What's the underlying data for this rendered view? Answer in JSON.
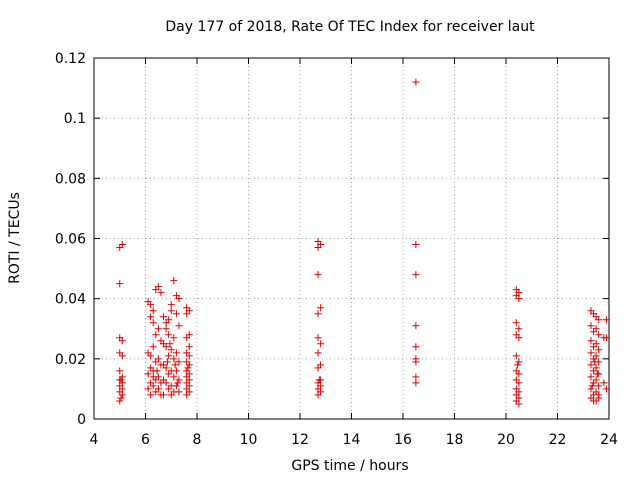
{
  "chart_data": {
    "type": "scatter",
    "title": "Day 177 of 2018, Rate Of TEC Index for receiver laut",
    "xlabel": "GPS time / hours",
    "ylabel": "ROTI / TECUs",
    "xlim": [
      4,
      24
    ],
    "ylim": [
      0,
      0.12
    ],
    "x_ticks": [
      4,
      6,
      8,
      10,
      12,
      14,
      16,
      18,
      20,
      22,
      24
    ],
    "x_tick_labels": [
      "4",
      "6",
      "8",
      "10",
      "12",
      "14",
      "16",
      "18",
      "20",
      "22",
      "24"
    ],
    "y_ticks": [
      0,
      0.02,
      0.04,
      0.06,
      0.08,
      0.1,
      0.12
    ],
    "y_tick_labels": [
      "0",
      "0.02",
      "0.04",
      "0.06",
      "0.08",
      "0.1",
      "0.12"
    ],
    "grid": true,
    "marker": "+",
    "color": "#dd0000",
    "series": [
      {
        "name": "ROTI",
        "points": [
          [
            5.0,
            0.057
          ],
          [
            5.1,
            0.058
          ],
          [
            5.0,
            0.045
          ],
          [
            5.0,
            0.027
          ],
          [
            5.1,
            0.026
          ],
          [
            5.0,
            0.022
          ],
          [
            5.1,
            0.021
          ],
          [
            5.0,
            0.016
          ],
          [
            5.1,
            0.014
          ],
          [
            5.0,
            0.013
          ],
          [
            5.1,
            0.012
          ],
          [
            5.0,
            0.011
          ],
          [
            5.1,
            0.01
          ],
          [
            5.0,
            0.009
          ],
          [
            5.1,
            0.008
          ],
          [
            5.0,
            0.006
          ],
          [
            5.05,
            0.013
          ],
          [
            5.05,
            0.007
          ],
          [
            6.1,
            0.039
          ],
          [
            6.2,
            0.038
          ],
          [
            6.3,
            0.036
          ],
          [
            6.4,
            0.043
          ],
          [
            6.5,
            0.044
          ],
          [
            6.6,
            0.042
          ],
          [
            6.2,
            0.034
          ],
          [
            6.3,
            0.032
          ],
          [
            6.5,
            0.03
          ],
          [
            6.4,
            0.028
          ],
          [
            6.6,
            0.026
          ],
          [
            6.3,
            0.024
          ],
          [
            6.1,
            0.022
          ],
          [
            6.2,
            0.021
          ],
          [
            6.5,
            0.02
          ],
          [
            6.4,
            0.019
          ],
          [
            6.6,
            0.018
          ],
          [
            6.2,
            0.017
          ],
          [
            6.3,
            0.016
          ],
          [
            6.1,
            0.015
          ],
          [
            6.5,
            0.014
          ],
          [
            6.4,
            0.013
          ],
          [
            6.2,
            0.012
          ],
          [
            6.6,
            0.012
          ],
          [
            6.3,
            0.011
          ],
          [
            6.1,
            0.01
          ],
          [
            6.5,
            0.01
          ],
          [
            6.4,
            0.009
          ],
          [
            6.2,
            0.008
          ],
          [
            6.6,
            0.008
          ],
          [
            6.3,
            0.014
          ],
          [
            6.45,
            0.016
          ],
          [
            6.7,
            0.034
          ],
          [
            6.8,
            0.032
          ],
          [
            6.9,
            0.033
          ],
          [
            7.0,
            0.038
          ],
          [
            7.1,
            0.046
          ],
          [
            7.2,
            0.041
          ],
          [
            7.3,
            0.04
          ],
          [
            7.0,
            0.036
          ],
          [
            7.2,
            0.035
          ],
          [
            6.8,
            0.03
          ],
          [
            6.9,
            0.028
          ],
          [
            7.1,
            0.027
          ],
          [
            7.3,
            0.031
          ],
          [
            6.7,
            0.025
          ],
          [
            6.8,
            0.024
          ],
          [
            7.0,
            0.023
          ],
          [
            7.2,
            0.022
          ],
          [
            6.9,
            0.021
          ],
          [
            7.1,
            0.02
          ],
          [
            7.3,
            0.019
          ],
          [
            6.7,
            0.018
          ],
          [
            6.8,
            0.017
          ],
          [
            7.0,
            0.016
          ],
          [
            7.2,
            0.016
          ],
          [
            6.9,
            0.015
          ],
          [
            7.1,
            0.014
          ],
          [
            7.3,
            0.013
          ],
          [
            6.7,
            0.013
          ],
          [
            6.8,
            0.012
          ],
          [
            7.0,
            0.011
          ],
          [
            7.2,
            0.011
          ],
          [
            6.9,
            0.01
          ],
          [
            7.1,
            0.009
          ],
          [
            7.3,
            0.009
          ],
          [
            6.7,
            0.008
          ],
          [
            7.0,
            0.008
          ],
          [
            7.25,
            0.012
          ],
          [
            6.85,
            0.019
          ],
          [
            7.15,
            0.018
          ],
          [
            6.95,
            0.025
          ],
          [
            7.6,
            0.037
          ],
          [
            7.7,
            0.036
          ],
          [
            7.6,
            0.035
          ],
          [
            7.7,
            0.028
          ],
          [
            7.6,
            0.027
          ],
          [
            7.7,
            0.024
          ],
          [
            7.6,
            0.022
          ],
          [
            7.7,
            0.021
          ],
          [
            7.6,
            0.019
          ],
          [
            7.7,
            0.018
          ],
          [
            7.6,
            0.016
          ],
          [
            7.7,
            0.015
          ],
          [
            7.6,
            0.014
          ],
          [
            7.7,
            0.013
          ],
          [
            7.6,
            0.012
          ],
          [
            7.7,
            0.011
          ],
          [
            7.6,
            0.01
          ],
          [
            7.7,
            0.009
          ],
          [
            7.6,
            0.008
          ],
          [
            7.65,
            0.017
          ],
          [
            12.7,
            0.059
          ],
          [
            12.8,
            0.058
          ],
          [
            12.7,
            0.057
          ],
          [
            12.7,
            0.048
          ],
          [
            12.8,
            0.037
          ],
          [
            12.7,
            0.035
          ],
          [
            12.7,
            0.027
          ],
          [
            12.8,
            0.025
          ],
          [
            12.7,
            0.022
          ],
          [
            12.8,
            0.018
          ],
          [
            12.7,
            0.017
          ],
          [
            12.8,
            0.013
          ],
          [
            12.7,
            0.012
          ],
          [
            12.8,
            0.011
          ],
          [
            12.7,
            0.01
          ],
          [
            12.8,
            0.009
          ],
          [
            12.7,
            0.008
          ],
          [
            12.75,
            0.013
          ],
          [
            16.5,
            0.112
          ],
          [
            16.5,
            0.058
          ],
          [
            16.5,
            0.048
          ],
          [
            16.5,
            0.031
          ],
          [
            16.5,
            0.024
          ],
          [
            16.5,
            0.02
          ],
          [
            16.5,
            0.019
          ],
          [
            16.5,
            0.014
          ],
          [
            16.5,
            0.012
          ],
          [
            20.4,
            0.043
          ],
          [
            20.5,
            0.042
          ],
          [
            20.4,
            0.041
          ],
          [
            20.5,
            0.04
          ],
          [
            20.4,
            0.032
          ],
          [
            20.5,
            0.03
          ],
          [
            20.4,
            0.028
          ],
          [
            20.5,
            0.027
          ],
          [
            20.4,
            0.021
          ],
          [
            20.5,
            0.019
          ],
          [
            20.4,
            0.016
          ],
          [
            20.5,
            0.015
          ],
          [
            20.4,
            0.013
          ],
          [
            20.5,
            0.012
          ],
          [
            20.4,
            0.01
          ],
          [
            20.5,
            0.009
          ],
          [
            20.4,
            0.008
          ],
          [
            20.5,
            0.007
          ],
          [
            20.4,
            0.006
          ],
          [
            20.5,
            0.005
          ],
          [
            20.45,
            0.018
          ],
          [
            23.3,
            0.036
          ],
          [
            23.4,
            0.035
          ],
          [
            23.5,
            0.034
          ],
          [
            23.6,
            0.033
          ],
          [
            23.9,
            0.033
          ],
          [
            23.3,
            0.031
          ],
          [
            23.5,
            0.03
          ],
          [
            23.4,
            0.029
          ],
          [
            23.6,
            0.028
          ],
          [
            23.8,
            0.027
          ],
          [
            23.9,
            0.027
          ],
          [
            23.3,
            0.026
          ],
          [
            23.5,
            0.025
          ],
          [
            23.4,
            0.024
          ],
          [
            23.6,
            0.023
          ],
          [
            23.3,
            0.022
          ],
          [
            23.5,
            0.021
          ],
          [
            23.4,
            0.02
          ],
          [
            23.6,
            0.019
          ],
          [
            23.3,
            0.018
          ],
          [
            23.5,
            0.017
          ],
          [
            23.4,
            0.016
          ],
          [
            23.6,
            0.015
          ],
          [
            23.3,
            0.014
          ],
          [
            23.5,
            0.013
          ],
          [
            23.4,
            0.012
          ],
          [
            23.6,
            0.011
          ],
          [
            23.3,
            0.01
          ],
          [
            23.5,
            0.009
          ],
          [
            23.4,
            0.008
          ],
          [
            23.6,
            0.008
          ],
          [
            23.3,
            0.007
          ],
          [
            23.5,
            0.006
          ],
          [
            23.4,
            0.006
          ],
          [
            23.6,
            0.007
          ],
          [
            23.8,
            0.012
          ],
          [
            23.9,
            0.01
          ],
          [
            23.45,
            0.019
          ],
          [
            23.55,
            0.015
          ],
          [
            23.35,
            0.011
          ]
        ]
      }
    ]
  }
}
